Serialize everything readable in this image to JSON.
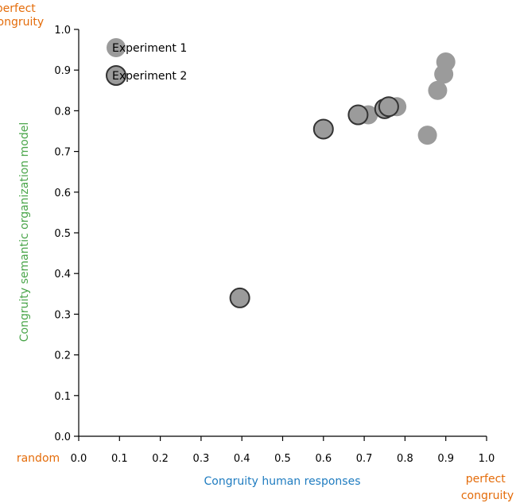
{
  "chart_data": {
    "type": "scatter",
    "title": "",
    "xlabel": "Congruity human responses",
    "ylabel": "Congruity semantic organization model",
    "xlim": [
      0.0,
      1.0
    ],
    "ylim": [
      0.0,
      1.0
    ],
    "x_ticks": [
      "0.0",
      "0.1",
      "0.2",
      "0.3",
      "0.4",
      "0.5",
      "0.6",
      "0.7",
      "0.8",
      "0.9",
      "1.0"
    ],
    "y_ticks": [
      "0.0",
      "0.1",
      "0.2",
      "0.3",
      "0.4",
      "0.5",
      "0.6",
      "0.7",
      "0.8",
      "0.9",
      "1.0"
    ],
    "grid": false,
    "legend_position": "top-left",
    "annotations": {
      "x_min_label": "random",
      "x_max_label": [
        "perfect",
        "congruity"
      ],
      "y_max_label": [
        "perfect",
        "congruity"
      ]
    },
    "series": [
      {
        "name": "Experiment 1",
        "color": "#9b9b9b",
        "outlined": false,
        "points": [
          {
            "x": 0.71,
            "y": 0.79
          },
          {
            "x": 0.78,
            "y": 0.81
          },
          {
            "x": 0.855,
            "y": 0.74
          },
          {
            "x": 0.88,
            "y": 0.85
          },
          {
            "x": 0.895,
            "y": 0.89
          },
          {
            "x": 0.9,
            "y": 0.92
          }
        ]
      },
      {
        "name": "Experiment 2",
        "color": "#9b9b9b",
        "outlined": true,
        "points": [
          {
            "x": 0.395,
            "y": 0.34
          },
          {
            "x": 0.6,
            "y": 0.755
          },
          {
            "x": 0.685,
            "y": 0.79
          },
          {
            "x": 0.75,
            "y": 0.805
          },
          {
            "x": 0.76,
            "y": 0.81
          }
        ]
      }
    ]
  },
  "colors": {
    "orange": "#e46c0a",
    "blue": "#1f7cc0",
    "green": "#4aa54a",
    "marker_fill": "#9b9b9b",
    "marker_edge": "#333333"
  }
}
